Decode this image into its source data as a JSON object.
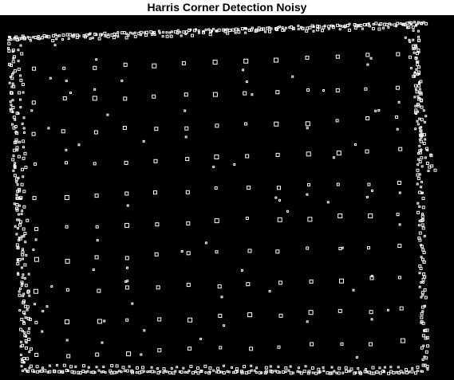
{
  "figure": {
    "title": "Harris Corner Detection Noisy"
  },
  "image": {
    "background_color": "#000000",
    "marker_color": "#ffffff",
    "marker_shape": "hollow-square",
    "content": "detected-corner-markers"
  }
}
